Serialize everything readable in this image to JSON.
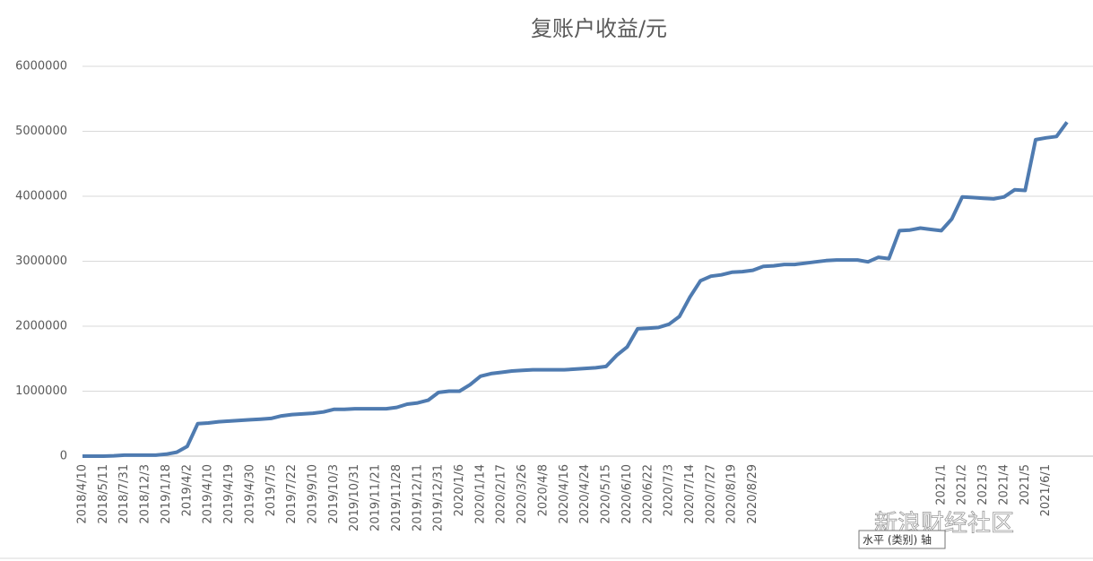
{
  "chart_data": {
    "type": "line",
    "title": "复账户收益/元",
    "categories": [
      "2018/4/10",
      null,
      "2018/5/11",
      null,
      "2018/7/31",
      null,
      "2018/12/3",
      null,
      "2019/1/18",
      null,
      "2019/4/2",
      null,
      "2019/4/10",
      null,
      "2019/4/19",
      null,
      "2019/4/30",
      null,
      "2019/7/5",
      null,
      "2019/7/22",
      null,
      "2019/9/10",
      null,
      "2019/10/3",
      null,
      "2019/10/31",
      null,
      "2019/11/21",
      null,
      "2019/11/28",
      null,
      "2019/12/11",
      null,
      "2019/12/31",
      null,
      "2020/1/6",
      null,
      "2020/1/14",
      null,
      "2020/2/17",
      null,
      "2020/3/26",
      null,
      "2020/4/8",
      null,
      "2020/4/16",
      null,
      "2020/4/24",
      null,
      "2020/5/15",
      null,
      "2020/6/10",
      null,
      "2020/6/22",
      null,
      "2020/7/3",
      null,
      "2020/7/14",
      null,
      "2020/7/27",
      null,
      "2020/8/19",
      null,
      "2020/8/29",
      null,
      null,
      null,
      null,
      null,
      null,
      null,
      null,
      null,
      null,
      null,
      null,
      null,
      null,
      null,
      null,
      null,
      "2021/1",
      null,
      "2021/2",
      null,
      "2021/3",
      null,
      "2021/4",
      null,
      "2021/5",
      null,
      "2021/6/1",
      null,
      null
    ],
    "series": [
      {
        "name": "复账户收益",
        "color": "#4f7bb0",
        "values": [
          0,
          0,
          0,
          5000,
          15000,
          15000,
          15000,
          15000,
          30000,
          60000,
          150000,
          500000,
          510000,
          530000,
          540000,
          550000,
          560000,
          570000,
          580000,
          620000,
          640000,
          650000,
          660000,
          680000,
          720000,
          720000,
          730000,
          730000,
          730000,
          730000,
          750000,
          800000,
          820000,
          860000,
          980000,
          1000000,
          1000000,
          1100000,
          1230000,
          1270000,
          1290000,
          1310000,
          1320000,
          1330000,
          1330000,
          1330000,
          1330000,
          1340000,
          1350000,
          1360000,
          1380000,
          1550000,
          1680000,
          1960000,
          1970000,
          1980000,
          2030000,
          2150000,
          2450000,
          2700000,
          2770000,
          2790000,
          2830000,
          2840000,
          2860000,
          2920000,
          2930000,
          2950000,
          2950000,
          2970000,
          2990000,
          3010000,
          3020000,
          3020000,
          3020000,
          2990000,
          3060000,
          3040000,
          3470000,
          3480000,
          3510000,
          3490000,
          3470000,
          3650000,
          3990000,
          3980000,
          3970000,
          3960000,
          3990000,
          4100000,
          4090000,
          4870000,
          4900000,
          4920000,
          5140000
        ]
      }
    ],
    "ylim": [
      0,
      6000000
    ],
    "yticks": [
      0,
      1000000,
      2000000,
      3000000,
      4000000,
      5000000,
      6000000
    ],
    "grid": true,
    "axis_tooltip": "水平 (类别) 轴",
    "watermark": "新浪财经社区"
  }
}
